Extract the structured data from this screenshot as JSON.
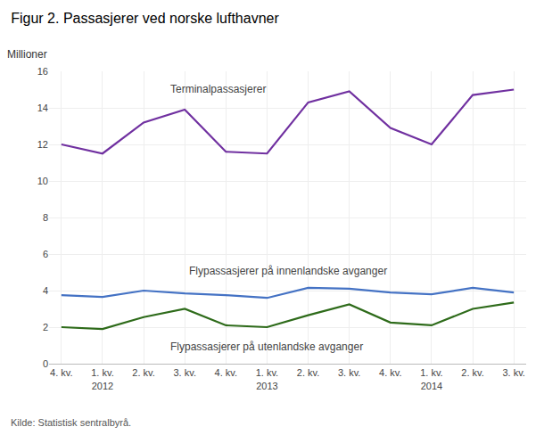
{
  "chart_data": {
    "type": "line",
    "title": "Figur 2. Passasjerer ved norske lufthavner",
    "ylabel": "Millioner",
    "source": "Kilde: Statistisk sentralbyrå.",
    "categories": [
      "4. kv.",
      "1. kv.\n2012",
      "2. kv.",
      "3. kv.",
      "4. kv.",
      "1. kv.\n2013",
      "2. kv.",
      "3. kv.",
      "4. kv.",
      "1. kv.\n2014",
      "2. kv.",
      "3. kv."
    ],
    "series": [
      {
        "color": "#7030A0",
        "values": [
          12.0,
          11.5,
          13.2,
          13.9,
          11.6,
          11.5,
          14.3,
          14.9,
          12.9,
          12.0,
          14.7,
          15.0
        ]
      },
      {
        "color": "#4472C4",
        "values": [
          3.75,
          3.65,
          4.0,
          3.85,
          3.75,
          3.6,
          4.15,
          4.1,
          3.9,
          3.8,
          4.15,
          3.9
        ]
      },
      {
        "color": "#2E6B1A",
        "values": [
          2.0,
          1.9,
          2.55,
          3.0,
          2.1,
          2.0,
          2.65,
          3.25,
          2.25,
          2.1,
          3.0,
          3.35
        ]
      }
    ],
    "annotations": [
      {
        "text": "Terminalpassasjerer",
        "x": 3.8,
        "y": 14.6
      },
      {
        "text": "Flypassasjerer på innenlandske avganger",
        "x": 5.5,
        "y": 4.65
      },
      {
        "text": "Flypassasjerer på utenlandske avganger",
        "x": 5.0,
        "y": 1.35
      }
    ],
    "ylim": [
      0,
      16
    ],
    "yticks": [
      0,
      2,
      4,
      6,
      8,
      10,
      12,
      14,
      16
    ],
    "grid": true
  }
}
